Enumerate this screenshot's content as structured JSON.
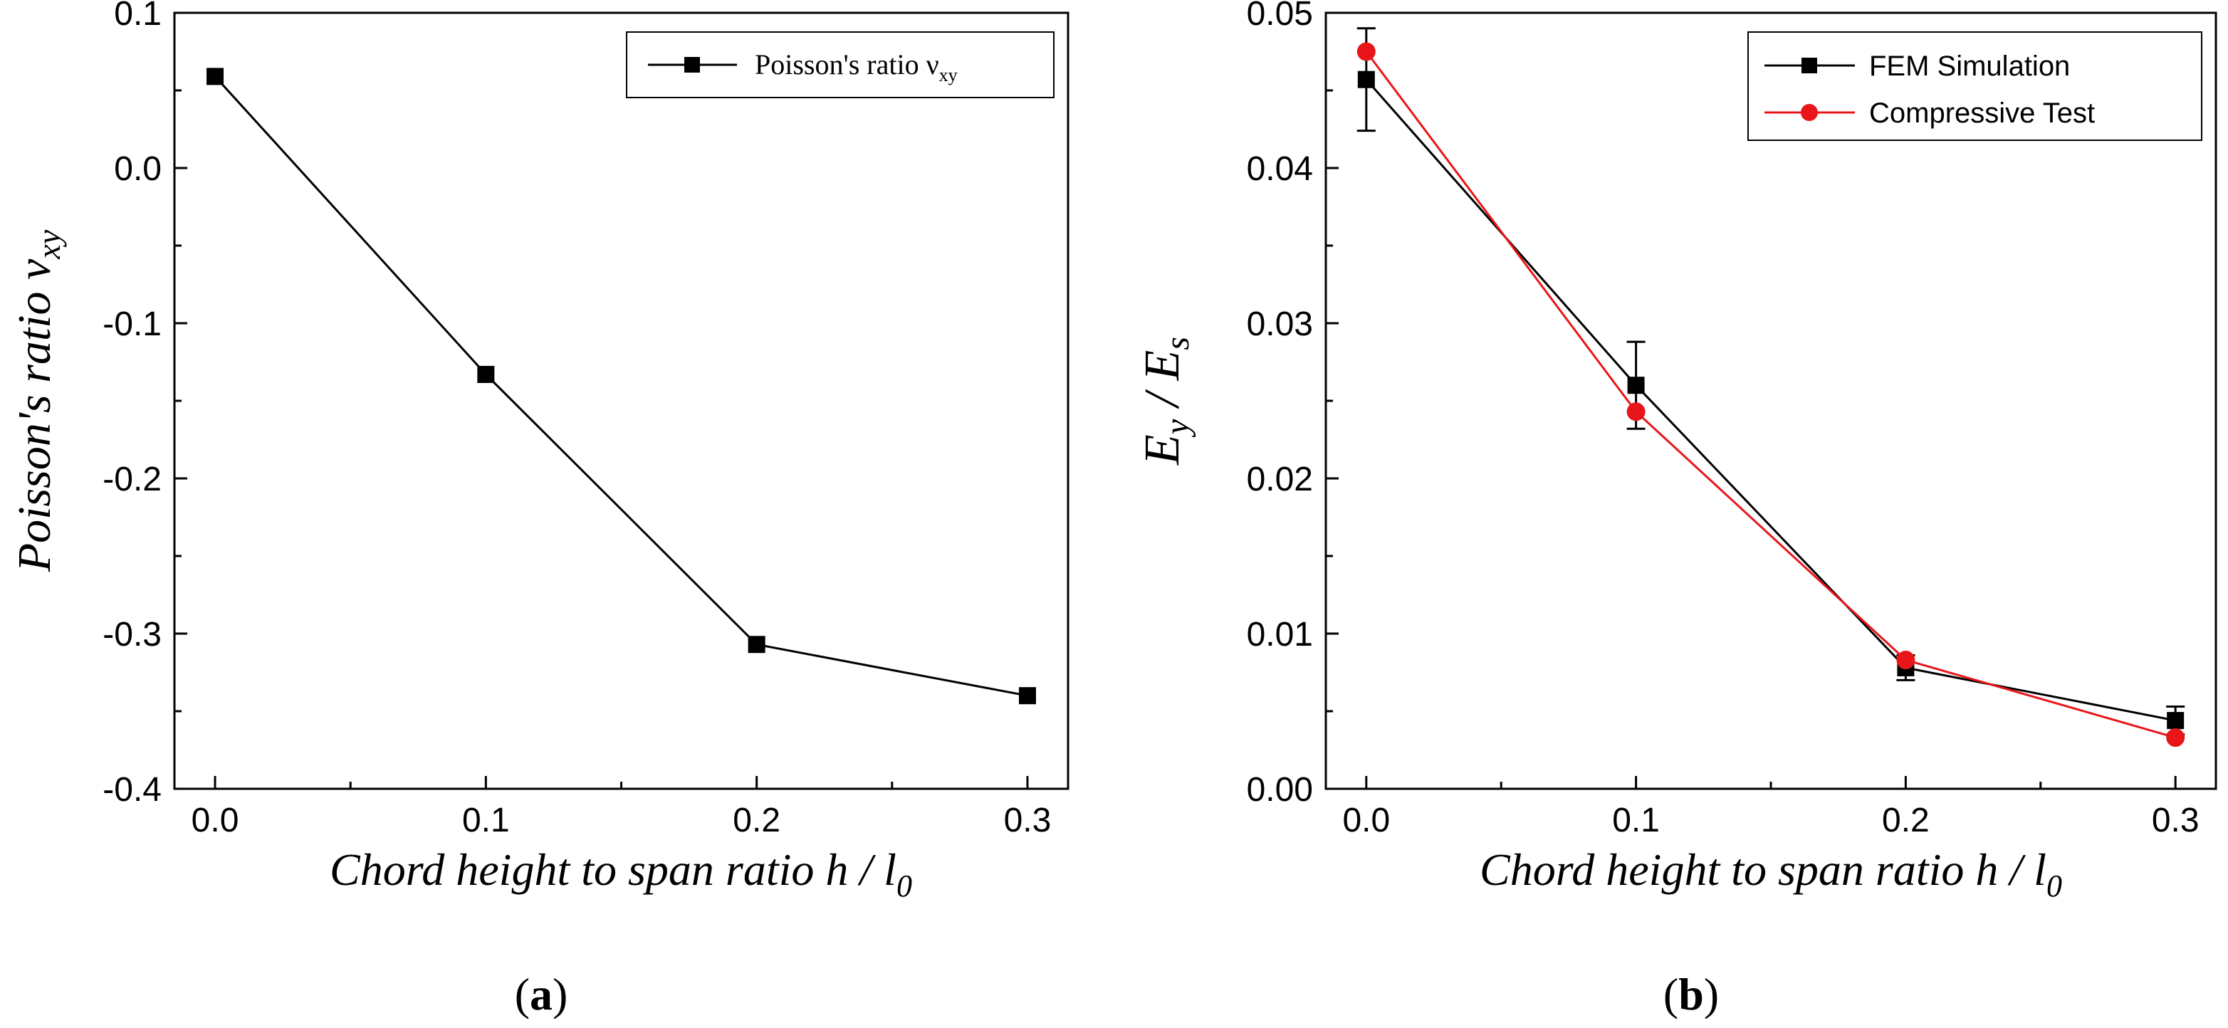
{
  "chart_data": [
    {
      "type": "line",
      "panel_label": "a",
      "xlabel": "Chord height to span ratio h / l",
      "xlabel_sub": "0",
      "ylabel": "Poisson's ratio ν",
      "ylabel_sub": "xy",
      "xlim": [
        -0.015,
        0.315
      ],
      "ylim": [
        -0.4,
        0.1
      ],
      "xticks": [
        0.0,
        0.1,
        0.2,
        0.3
      ],
      "xtick_labels": [
        "0.0",
        "0.1",
        "0.2",
        "0.3"
      ],
      "yticks": [
        -0.4,
        -0.3,
        -0.2,
        -0.1,
        0.0,
        0.1
      ],
      "ytick_labels": [
        "-0.4",
        "-0.3",
        "-0.2",
        "-0.1",
        "0.0",
        "0.1"
      ],
      "legend_position": "top-right",
      "x": [
        0.0,
        0.1,
        0.2,
        0.3
      ],
      "series": [
        {
          "name": "Poisson's ratio ν",
          "name_sub": "xy",
          "color": "#000000",
          "marker": "square",
          "values": [
            0.059,
            -0.133,
            -0.307,
            -0.34
          ]
        }
      ]
    },
    {
      "type": "line",
      "panel_label": "b",
      "xlabel": "Chord height to span ratio h / l",
      "xlabel_sub": "0",
      "ylabel_parts": [
        "E",
        "y",
        " / E",
        "s"
      ],
      "xlim": [
        -0.015,
        0.315
      ],
      "ylim": [
        0.0,
        0.05
      ],
      "xticks": [
        0.0,
        0.1,
        0.2,
        0.3
      ],
      "xtick_labels": [
        "0.0",
        "0.1",
        "0.2",
        "0.3"
      ],
      "yticks": [
        0.0,
        0.01,
        0.02,
        0.03,
        0.04,
        0.05
      ],
      "ytick_labels": [
        "0.00",
        "0.01",
        "0.02",
        "0.03",
        "0.04",
        "0.05"
      ],
      "legend_position": "top-right",
      "x": [
        0.0,
        0.1,
        0.2,
        0.3
      ],
      "series": [
        {
          "name": "FEM Simulation",
          "color": "#000000",
          "marker": "square",
          "values": [
            0.0457,
            0.026,
            0.0078,
            0.0044
          ],
          "error": [
            0.0033,
            0.0028,
            0.0008,
            0.0009
          ]
        },
        {
          "name": "Compressive Test",
          "color": "#e8161b",
          "marker": "circle",
          "values": [
            0.0475,
            0.0243,
            0.0083,
            0.0033
          ]
        }
      ]
    }
  ]
}
